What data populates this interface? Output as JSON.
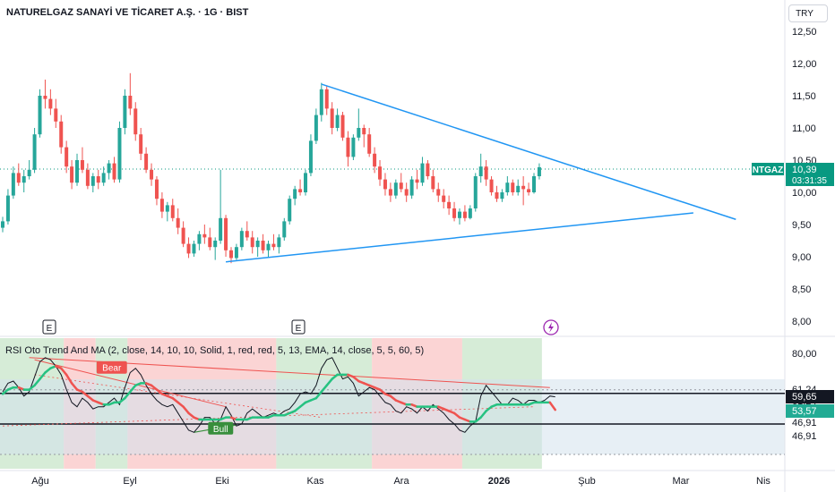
{
  "header": {
    "title": "NATURELGAZ SANAYİ VE TİCARET A.Ş. · 1G · BIST",
    "currency": "TRY"
  },
  "colors": {
    "up": "#26a69a",
    "down": "#ef5350",
    "trendline": "#2196f3",
    "tag": "#089981",
    "rsi_line": "#131722",
    "ma_up": "#26c281",
    "ma_down": "#ef5350",
    "zone_bear": "#f9c5c5",
    "zone_bull": "#c8e6c9",
    "zone_neutral": "#dcdcf0",
    "band_fill": "#d3e1ec"
  },
  "price_tag": {
    "symbol": "NTGAZ",
    "price": "10,39",
    "countdown": "03:31:35"
  },
  "event_markers": [
    "E",
    "E"
  ],
  "rsi_legend": "RSI Oto Trend And MA (2, close, 14, 10, 10, Solid, 1, red, red, 5, 13, EMA, 14, close, 5, 5, 60, 5)",
  "rsi_labels": {
    "bear": "Bear",
    "bull": "Bull"
  },
  "rsi_tags": {
    "rsi": "59,65",
    "ma": "53,57"
  },
  "chart_data": [
    {
      "type": "candlestick",
      "title": "NATURELGAZ SANAYİ VE TİCARET A.Ş. · 1G · BIST",
      "y_ticks": [
        "12,50",
        "12,00",
        "11,50",
        "11,00",
        "10,50",
        "10,00",
        "9,50",
        "9,00",
        "8,50",
        "8,00"
      ],
      "ylim": [
        7.9,
        12.65
      ],
      "x_ticks": [
        "Ağu",
        "Eyl",
        "Eki",
        "Kas",
        "Ara",
        "2026",
        "Şub",
        "Mar",
        "Nis"
      ],
      "last_price": 10.39,
      "ohlc": [
        [
          9.45,
          9.62,
          9.38,
          9.55
        ],
        [
          9.55,
          10.05,
          9.5,
          9.95
        ],
        [
          9.95,
          10.4,
          9.9,
          10.3
        ],
        [
          10.3,
          10.45,
          10.1,
          10.15
        ],
        [
          10.15,
          10.35,
          10.0,
          10.25
        ],
        [
          10.25,
          10.5,
          10.2,
          10.35
        ],
        [
          10.35,
          11.0,
          10.3,
          10.9
        ],
        [
          10.9,
          11.6,
          10.85,
          11.5
        ],
        [
          11.5,
          11.75,
          11.3,
          11.45
        ],
        [
          11.45,
          11.6,
          11.2,
          11.3
        ],
        [
          11.3,
          11.45,
          11.0,
          11.1
        ],
        [
          11.1,
          11.2,
          10.6,
          10.7
        ],
        [
          10.7,
          10.8,
          10.3,
          10.4
        ],
        [
          10.4,
          10.5,
          10.05,
          10.15
        ],
        [
          10.15,
          10.6,
          10.1,
          10.5
        ],
        [
          10.5,
          10.7,
          10.3,
          10.35
        ],
        [
          10.35,
          10.45,
          10.05,
          10.1
        ],
        [
          10.1,
          10.3,
          10.0,
          10.25
        ],
        [
          10.25,
          10.35,
          10.05,
          10.15
        ],
        [
          10.15,
          10.4,
          10.1,
          10.3
        ],
        [
          10.3,
          10.5,
          10.2,
          10.45
        ],
        [
          10.45,
          10.55,
          10.15,
          10.2
        ],
        [
          10.2,
          11.1,
          10.15,
          11.0
        ],
        [
          11.0,
          11.6,
          10.9,
          11.5
        ],
        [
          11.5,
          11.85,
          11.2,
          11.3
        ],
        [
          11.3,
          11.4,
          10.8,
          10.9
        ],
        [
          10.9,
          11.0,
          10.5,
          10.6
        ],
        [
          10.6,
          10.7,
          10.3,
          10.35
        ],
        [
          10.35,
          10.45,
          10.1,
          10.2
        ],
        [
          10.2,
          10.25,
          9.8,
          9.9
        ],
        [
          9.9,
          10.0,
          9.6,
          9.7
        ],
        [
          9.7,
          9.85,
          9.55,
          9.8
        ],
        [
          9.8,
          9.9,
          9.55,
          9.6
        ],
        [
          9.6,
          9.75,
          9.35,
          9.45
        ],
        [
          9.45,
          9.55,
          9.15,
          9.2
        ],
        [
          9.2,
          9.3,
          8.98,
          9.05
        ],
        [
          9.05,
          9.25,
          9.0,
          9.2
        ],
        [
          9.2,
          9.4,
          9.1,
          9.35
        ],
        [
          9.35,
          9.5,
          9.2,
          9.3
        ],
        [
          9.3,
          9.45,
          9.1,
          9.15
        ],
        [
          9.15,
          9.3,
          8.95,
          9.25
        ],
        [
          9.25,
          10.35,
          9.2,
          9.6
        ],
        [
          9.6,
          9.65,
          9.0,
          9.1
        ],
        [
          9.1,
          9.15,
          8.9,
          8.98
        ],
        [
          8.98,
          9.2,
          8.95,
          9.15
        ],
        [
          9.15,
          9.45,
          9.1,
          9.4
        ],
        [
          9.4,
          9.55,
          9.25,
          9.3
        ],
        [
          9.3,
          9.4,
          9.05,
          9.15
        ],
        [
          9.15,
          9.3,
          9.0,
          9.25
        ],
        [
          9.25,
          9.35,
          9.05,
          9.1
        ],
        [
          9.1,
          9.25,
          9.0,
          9.2
        ],
        [
          9.2,
          9.35,
          9.1,
          9.15
        ],
        [
          9.15,
          9.35,
          9.05,
          9.3
        ],
        [
          9.3,
          9.6,
          9.25,
          9.55
        ],
        [
          9.55,
          9.95,
          9.5,
          9.9
        ],
        [
          9.9,
          10.1,
          9.8,
          10.05
        ],
        [
          10.05,
          10.2,
          9.95,
          10.0
        ],
        [
          10.0,
          10.35,
          9.95,
          10.3
        ],
        [
          10.3,
          10.9,
          10.25,
          10.8
        ],
        [
          10.8,
          11.3,
          10.75,
          11.2
        ],
        [
          11.2,
          11.7,
          11.1,
          11.6
        ],
        [
          11.6,
          11.65,
          11.2,
          11.3
        ],
        [
          11.3,
          11.4,
          10.9,
          11.0
        ],
        [
          11.0,
          11.3,
          10.95,
          11.2
        ],
        [
          11.2,
          11.25,
          10.8,
          10.85
        ],
        [
          10.85,
          10.95,
          10.4,
          10.55
        ],
        [
          10.55,
          10.9,
          10.5,
          10.85
        ],
        [
          10.85,
          11.3,
          10.8,
          11.0
        ],
        [
          11.0,
          11.05,
          10.7,
          10.9
        ],
        [
          10.9,
          11.0,
          10.55,
          10.6
        ],
        [
          10.6,
          10.7,
          10.3,
          10.4
        ],
        [
          10.4,
          10.5,
          10.1,
          10.2
        ],
        [
          10.2,
          10.3,
          9.95,
          10.05
        ],
        [
          10.05,
          10.15,
          9.85,
          9.95
        ],
        [
          9.95,
          10.2,
          9.9,
          10.15
        ],
        [
          10.15,
          10.3,
          10.0,
          10.05
        ],
        [
          10.05,
          10.15,
          9.85,
          9.95
        ],
        [
          9.95,
          10.25,
          9.9,
          10.2
        ],
        [
          10.2,
          10.35,
          10.05,
          10.15
        ],
        [
          10.15,
          10.55,
          10.1,
          10.45
        ],
        [
          10.45,
          10.5,
          10.2,
          10.25
        ],
        [
          10.25,
          10.35,
          10.0,
          10.05
        ],
        [
          10.05,
          10.15,
          9.85,
          9.95
        ],
        [
          9.95,
          10.05,
          9.75,
          9.85
        ],
        [
          9.85,
          9.95,
          9.65,
          9.75
        ],
        [
          9.75,
          9.85,
          9.55,
          9.6
        ],
        [
          9.6,
          9.75,
          9.5,
          9.7
        ],
        [
          9.7,
          9.8,
          9.55,
          9.6
        ],
        [
          9.6,
          9.8,
          9.58,
          9.75
        ],
        [
          9.75,
          10.3,
          9.7,
          10.25
        ],
        [
          10.25,
          10.6,
          10.15,
          10.4
        ],
        [
          10.4,
          10.5,
          10.1,
          10.2
        ],
        [
          10.2,
          10.25,
          9.95,
          10.0
        ],
        [
          10.0,
          10.1,
          9.85,
          9.9
        ],
        [
          9.9,
          10.05,
          9.85,
          10.0
        ],
        [
          10.0,
          10.25,
          9.95,
          10.15
        ],
        [
          10.15,
          10.2,
          9.95,
          10.0
        ],
        [
          10.0,
          10.2,
          9.95,
          10.1
        ],
        [
          10.1,
          10.25,
          9.8,
          10.05
        ],
        [
          10.05,
          10.15,
          9.95,
          10.0
        ],
        [
          10.0,
          10.3,
          9.98,
          10.25
        ],
        [
          10.25,
          10.45,
          10.2,
          10.39
        ]
      ],
      "trendlines": [
        {
          "from": [
            60,
            11.68
          ],
          "to": [
            138,
            9.58
          ]
        },
        {
          "from": [
            42,
            8.92
          ],
          "to": [
            130,
            9.68
          ]
        }
      ]
    },
    {
      "type": "line",
      "title": "RSI Oto Trend And MA (2, close, 14, 10, 10, Solid, 1, red, red, 5, 13, EMA, 14, close, 5, 5, 60, 5)",
      "y_ticks": [
        "80,00",
        "61,24",
        "61,24",
        "46,91",
        "46,91"
      ],
      "ylim": [
        38,
        82
      ],
      "levels": [
        61.24,
        46.91
      ],
      "series": [
        {
          "values": [
            62,
            66,
            67,
            64,
            60,
            62,
            69,
            76,
            78,
            77,
            74,
            70,
            63,
            57,
            55,
            59,
            57,
            54,
            55,
            55,
            57,
            59,
            56,
            64,
            71,
            73,
            70,
            65,
            61,
            58,
            56,
            55,
            56,
            52,
            48,
            44,
            43,
            46,
            50,
            50,
            47,
            49,
            55,
            51,
            46,
            47,
            52,
            54,
            52,
            50,
            51,
            52,
            51,
            53,
            54,
            57,
            61,
            62,
            61,
            65,
            73,
            77,
            78,
            73,
            68,
            69,
            66,
            60,
            62,
            64,
            63,
            60,
            57,
            56,
            53,
            52,
            55,
            54,
            52,
            55,
            53,
            56,
            54,
            52,
            49,
            47,
            44,
            43,
            46,
            48,
            60,
            65,
            62,
            59,
            56,
            56,
            59,
            58,
            56,
            58,
            58,
            57,
            58,
            60,
            59.65
          ]
        },
        {
          "name": "MA",
          "values": [
            61,
            63,
            64,
            64,
            63,
            63,
            65,
            68,
            71,
            73,
            74,
            73,
            70,
            66,
            63,
            62,
            60,
            58,
            57,
            56,
            56,
            57,
            57,
            59,
            62,
            65,
            66,
            66,
            65,
            63,
            61,
            60,
            59,
            57,
            55,
            52,
            50,
            49,
            49,
            49,
            49,
            49,
            50,
            50,
            49,
            49,
            49,
            50,
            50,
            50,
            50,
            51,
            51,
            51,
            52,
            53,
            55,
            57,
            58,
            59,
            62,
            65,
            68,
            70,
            70,
            70,
            69,
            67,
            66,
            65,
            64,
            63,
            61,
            60,
            58,
            57,
            56,
            56,
            55,
            55,
            55,
            55,
            55,
            54,
            53,
            52,
            50,
            49,
            48,
            48,
            50,
            53,
            55,
            56,
            56,
            56,
            56,
            56,
            56,
            56,
            57,
            57,
            57,
            57,
            53.57
          ]
        }
      ]
    }
  ]
}
